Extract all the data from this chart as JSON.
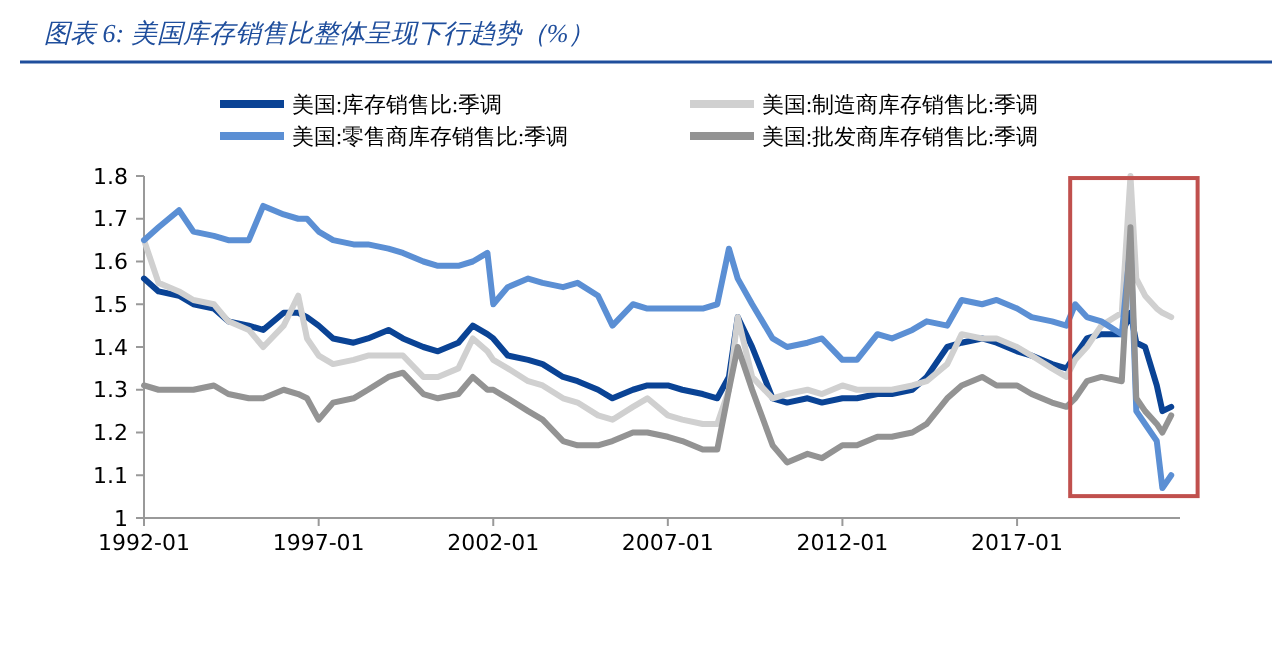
{
  "chart_data": {
    "type": "line",
    "title": "图表 6:  美国库存销售比整体呈现下行趋势（%）",
    "x": [
      "1992-01",
      "1992-06",
      "1993-01",
      "1993-06",
      "1994-01",
      "1994-06",
      "1995-01",
      "1995-06",
      "1996-01",
      "1996-06",
      "1996-09",
      "1997-01",
      "1997-06",
      "1998-01",
      "1998-06",
      "1999-01",
      "1999-06",
      "2000-01",
      "2000-06",
      "2001-01",
      "2001-06",
      "2001-11",
      "2002-01",
      "2002-06",
      "2003-01",
      "2003-06",
      "2004-01",
      "2004-06",
      "2005-01",
      "2005-06",
      "2006-01",
      "2006-06",
      "2007-01",
      "2007-06",
      "2008-01",
      "2008-06",
      "2008-10",
      "2009-01",
      "2009-06",
      "2010-01",
      "2010-06",
      "2011-01",
      "2011-06",
      "2012-01",
      "2012-06",
      "2013-01",
      "2013-06",
      "2014-01",
      "2014-06",
      "2015-01",
      "2015-06",
      "2016-01",
      "2016-06",
      "2017-01",
      "2017-06",
      "2018-01",
      "2018-06",
      "2018-09",
      "2019-01",
      "2019-06",
      "2020-01",
      "2020-04",
      "2020-06",
      "2020-09",
      "2021-01",
      "2021-03",
      "2021-06"
    ],
    "series": [
      {
        "name": "美国:库存销售比:季调",
        "color": "#0a4395",
        "values": [
          1.56,
          1.53,
          1.52,
          1.5,
          1.49,
          1.46,
          1.45,
          1.44,
          1.48,
          1.48,
          1.47,
          1.45,
          1.42,
          1.41,
          1.42,
          1.44,
          1.42,
          1.4,
          1.39,
          1.41,
          1.45,
          1.43,
          1.42,
          1.38,
          1.37,
          1.36,
          1.33,
          1.32,
          1.3,
          1.28,
          1.3,
          1.31,
          1.31,
          1.3,
          1.29,
          1.28,
          1.33,
          1.47,
          1.4,
          1.28,
          1.27,
          1.28,
          1.27,
          1.28,
          1.28,
          1.29,
          1.29,
          1.3,
          1.33,
          1.4,
          1.41,
          1.42,
          1.41,
          1.39,
          1.38,
          1.36,
          1.35,
          1.38,
          1.42,
          1.43,
          1.43,
          1.48,
          1.41,
          1.4,
          1.31,
          1.25,
          1.26
        ]
      },
      {
        "name": "美国:制造商库存销售比:季调",
        "color": "#d0d0d0",
        "values": [
          1.65,
          1.55,
          1.53,
          1.51,
          1.5,
          1.46,
          1.44,
          1.4,
          1.45,
          1.52,
          1.42,
          1.38,
          1.36,
          1.37,
          1.38,
          1.38,
          1.38,
          1.33,
          1.33,
          1.35,
          1.42,
          1.39,
          1.37,
          1.35,
          1.32,
          1.31,
          1.28,
          1.27,
          1.24,
          1.23,
          1.26,
          1.28,
          1.24,
          1.23,
          1.22,
          1.22,
          1.3,
          1.47,
          1.33,
          1.28,
          1.29,
          1.3,
          1.29,
          1.31,
          1.3,
          1.3,
          1.3,
          1.31,
          1.32,
          1.36,
          1.43,
          1.42,
          1.42,
          1.4,
          1.38,
          1.35,
          1.33,
          1.37,
          1.4,
          1.45,
          1.48,
          1.8,
          1.56,
          1.52,
          1.49,
          1.48,
          1.47
        ]
      },
      {
        "name": "美国:零售商库存销售比:季调",
        "color": "#5b8fd4",
        "values": [
          1.65,
          1.68,
          1.72,
          1.67,
          1.66,
          1.65,
          1.65,
          1.73,
          1.71,
          1.7,
          1.7,
          1.67,
          1.65,
          1.64,
          1.64,
          1.63,
          1.62,
          1.6,
          1.59,
          1.59,
          1.6,
          1.62,
          1.5,
          1.54,
          1.56,
          1.55,
          1.54,
          1.55,
          1.52,
          1.45,
          1.5,
          1.49,
          1.49,
          1.49,
          1.49,
          1.5,
          1.63,
          1.56,
          1.5,
          1.42,
          1.4,
          1.41,
          1.42,
          1.37,
          1.37,
          1.43,
          1.42,
          1.44,
          1.46,
          1.45,
          1.51,
          1.5,
          1.51,
          1.49,
          1.47,
          1.46,
          1.45,
          1.5,
          1.47,
          1.46,
          1.43,
          1.64,
          1.25,
          1.22,
          1.18,
          1.07,
          1.1
        ]
      },
      {
        "name": "美国:批发商库存销售比:季调",
        "color": "#939393",
        "values": [
          1.31,
          1.3,
          1.3,
          1.3,
          1.31,
          1.29,
          1.28,
          1.28,
          1.3,
          1.29,
          1.28,
          1.23,
          1.27,
          1.28,
          1.3,
          1.33,
          1.34,
          1.29,
          1.28,
          1.29,
          1.33,
          1.3,
          1.3,
          1.28,
          1.25,
          1.23,
          1.18,
          1.17,
          1.17,
          1.18,
          1.2,
          1.2,
          1.19,
          1.18,
          1.16,
          1.16,
          1.3,
          1.4,
          1.3,
          1.17,
          1.13,
          1.15,
          1.14,
          1.17,
          1.17,
          1.19,
          1.19,
          1.2,
          1.22,
          1.28,
          1.31,
          1.33,
          1.31,
          1.31,
          1.29,
          1.27,
          1.26,
          1.28,
          1.32,
          1.33,
          1.32,
          1.68,
          1.28,
          1.25,
          1.22,
          1.2,
          1.24
        ]
      }
    ],
    "xlim": [
      "1992-01",
      "2021-09"
    ],
    "xticks": [
      {
        "value": "1992-01",
        "label": "1992-01"
      },
      {
        "value": "1997-01",
        "label": "1997-01"
      },
      {
        "value": "2002-01",
        "label": "2002-01"
      },
      {
        "value": "2007-01",
        "label": "2007-01"
      },
      {
        "value": "2012-01",
        "label": "2012-01"
      },
      {
        "value": "2017-01",
        "label": "2017-01"
      }
    ],
    "ylim": [
      1,
      1.8
    ],
    "yticks": [
      1,
      1.1,
      1.2,
      1.3,
      1.4,
      1.5,
      1.6,
      1.7,
      1.8
    ],
    "legend": "top",
    "grid": false,
    "marker": "none",
    "line_style": "solid"
  }
}
